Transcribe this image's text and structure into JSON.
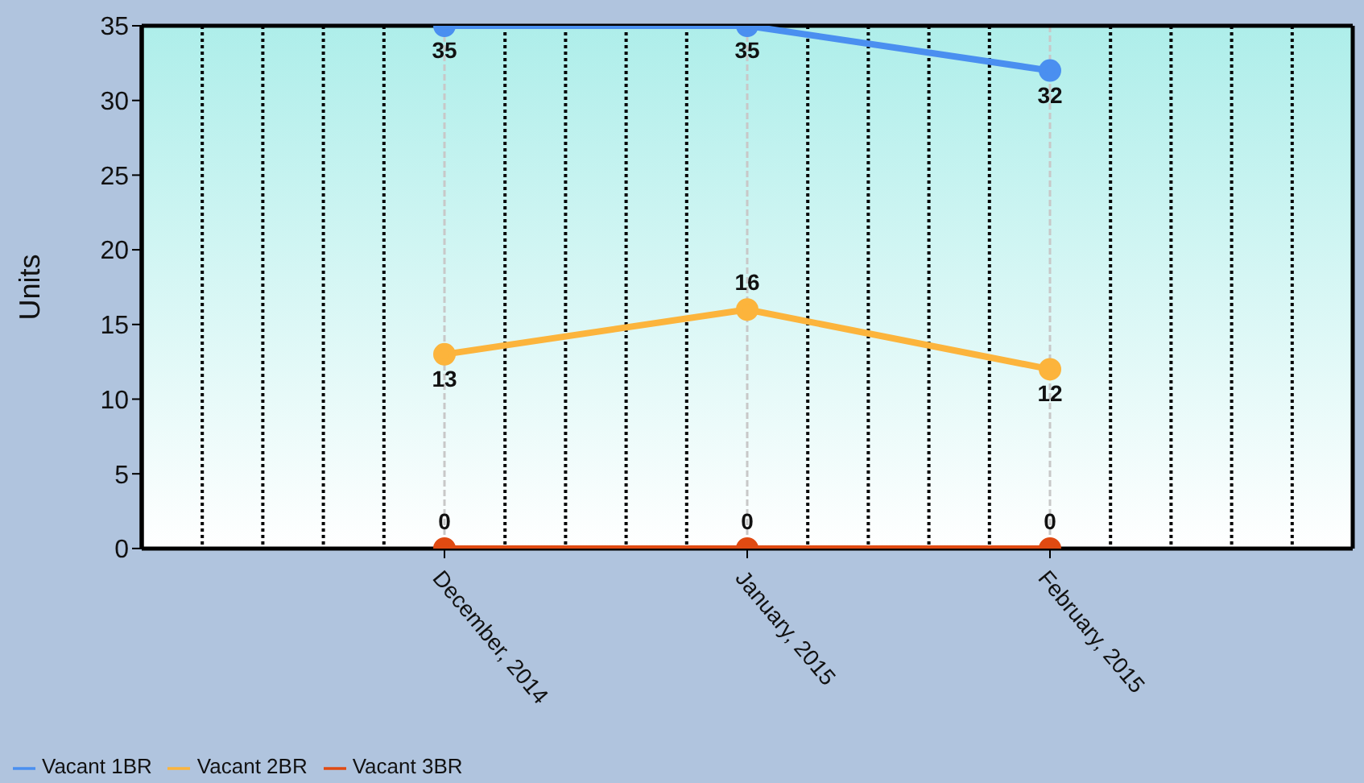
{
  "chart_data": {
    "type": "line",
    "ylabel": "Units",
    "categories": [
      "December, 2014",
      "January, 2015",
      "February, 2015"
    ],
    "series": [
      {
        "name": "Vacant 1BR",
        "color": "#4a8ff0",
        "values": [
          35,
          35,
          32
        ]
      },
      {
        "name": "Vacant 2BR",
        "color": "#fcb43c",
        "values": [
          13,
          16,
          12
        ]
      },
      {
        "name": "Vacant 3BR",
        "color": "#e04a12",
        "values": [
          0,
          0,
          0
        ]
      }
    ],
    "ylim": [
      0,
      35
    ],
    "yticks": [
      0,
      5,
      10,
      15,
      20,
      25,
      30,
      35
    ],
    "grid": "x",
    "legend": "bottom left",
    "marker": "circle",
    "line_style": "solid",
    "data_labels": true
  }
}
